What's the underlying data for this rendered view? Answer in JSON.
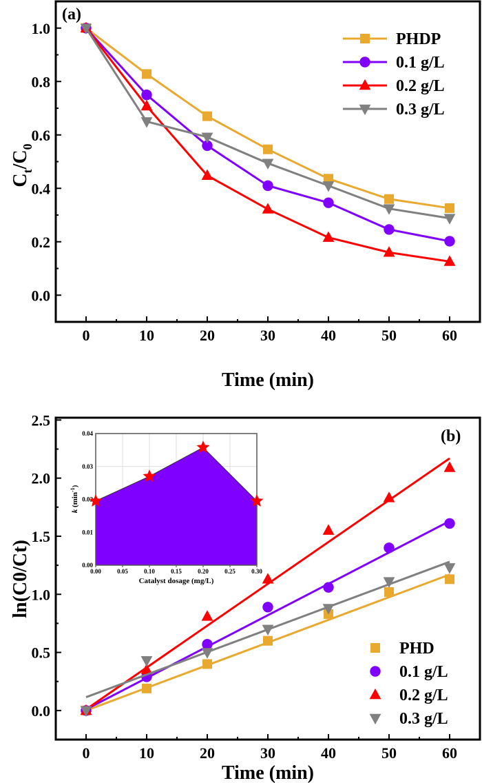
{
  "chart_data": [
    {
      "type": "line",
      "panel_label": "(a)",
      "xlabel": "Time (min)",
      "ylabel_main": "C",
      "ylabel_sub1": "t",
      "ylabel_mid": "/C",
      "ylabel_sub2": "0",
      "xlim": [
        -5,
        65
      ],
      "ylim": [
        -0.1,
        1.1
      ],
      "xticks": [
        0,
        10,
        20,
        30,
        40,
        50,
        60
      ],
      "yticks": [
        0.0,
        0.2,
        0.4,
        0.6,
        0.8,
        1.0
      ],
      "ytick_labels": [
        "0.0",
        "0.2",
        "0.4",
        "0.6",
        "0.8",
        "1.0"
      ],
      "legend_position": "top-right",
      "x": [
        0,
        10,
        20,
        30,
        40,
        50,
        60
      ],
      "series": [
        {
          "name": "PHDP",
          "color": "#E8A92E",
          "marker": "square",
          "values": [
            1.0,
            0.828,
            0.67,
            0.546,
            0.436,
            0.36,
            0.326
          ]
        },
        {
          "name": "0.1 g/L",
          "color": "#8000FF",
          "marker": "circle",
          "values": [
            1.0,
            0.75,
            0.56,
            0.41,
            0.346,
            0.246,
            0.202
          ]
        },
        {
          "name": "0.2 g/L",
          "color": "#FF0000",
          "marker": "triangle-up",
          "values": [
            1.0,
            0.708,
            0.448,
            0.322,
            0.216,
            0.16,
            0.126
          ]
        },
        {
          "name": "0.3 g/L",
          "color": "#808080",
          "marker": "triangle-down",
          "values": [
            1.0,
            0.65,
            0.592,
            0.494,
            0.41,
            0.324,
            0.288
          ]
        }
      ]
    },
    {
      "type": "scatter",
      "panel_label": "(b)",
      "xlabel": "Time (min)",
      "ylabel": "ln(C0/Ct)",
      "xlim": [
        -5,
        65
      ],
      "ylim": [
        -0.25,
        2.52
      ],
      "xticks": [
        0,
        10,
        20,
        30,
        40,
        50,
        60
      ],
      "yticks": [
        0.0,
        0.5,
        1.0,
        1.5,
        2.0,
        2.5
      ],
      "ytick_labels": [
        "0.0",
        "0.5",
        "1.0",
        "1.5",
        "2.0",
        "2.5"
      ],
      "legend_position": "bottom-right",
      "x": [
        0,
        10,
        20,
        30,
        40,
        50,
        60
      ],
      "series": [
        {
          "name": "PHD",
          "color": "#E8A92E",
          "marker": "square",
          "values": [
            0,
            0.19,
            0.4,
            0.6,
            0.83,
            1.02,
            1.13
          ],
          "fit": [
            0.0,
            1.17
          ]
        },
        {
          "name": "0.1 g/L",
          "color": "#8000FF",
          "marker": "circle",
          "values": [
            0,
            0.29,
            0.57,
            0.89,
            1.06,
            1.4,
            1.61
          ],
          "fit": [
            0.01,
            1.63
          ]
        },
        {
          "name": "0.2 g/L",
          "color": "#FF0000",
          "marker": "triangle-up",
          "values": [
            0,
            0.35,
            0.81,
            1.13,
            1.55,
            1.83,
            2.09
          ],
          "fit": [
            0.01,
            2.17
          ]
        },
        {
          "name": "0.3 g/L",
          "color": "#808080",
          "marker": "triangle-down",
          "values": [
            0,
            0.43,
            0.5,
            0.7,
            0.88,
            1.11,
            1.23
          ],
          "fit": [
            0.115,
            1.28
          ]
        }
      ],
      "inset": {
        "type": "area",
        "xlabel": "Catalyst dosage (mg/L)",
        "ylabel_k": "k",
        "ylabel_rest": " (min",
        "ylabel_sup": "-1",
        "ylabel_close": ")",
        "xlim": [
          0,
          0.3
        ],
        "ylim": [
          0,
          0.04
        ],
        "xticks": [
          0,
          0.05,
          0.1,
          0.15,
          0.2,
          0.25,
          0.3
        ],
        "xtick_labels": [
          "0.00",
          "0.05",
          "0.10",
          "0.15",
          "0.20",
          "0.25",
          "0.30"
        ],
        "yticks": [
          0,
          0.01,
          0.02,
          0.03,
          0.04
        ],
        "ytick_labels": [
          "0.00",
          "0.01",
          "0.02",
          "0.03",
          "0.04"
        ],
        "x": [
          0,
          0.1,
          0.2,
          0.3
        ],
        "values": [
          0.0195,
          0.027,
          0.0358,
          0.0195
        ],
        "fill_color": "#8000FF",
        "marker_color": "#FF0000",
        "marker": "star",
        "grid": true
      }
    }
  ]
}
